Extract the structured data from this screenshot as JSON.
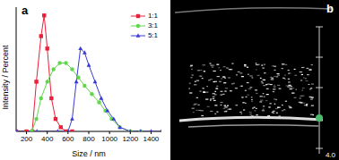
{
  "chart_data": {
    "type": "line",
    "panel_label": "a",
    "x_label": "Size / nm",
    "y_label": "Intensity / Percent",
    "xlim": [
      100,
      1500
    ],
    "xticks": [
      200,
      400,
      600,
      800,
      1000,
      1200,
      1400
    ],
    "ylim": [
      0,
      30
    ],
    "tick_labels": "x",
    "legend": "upper right",
    "series": [
      {
        "name": "1:1",
        "color": "#e8203a",
        "marker": "square",
        "x": [
          100,
          200,
          255,
          295,
          340,
          370,
          400,
          440,
          480,
          530,
          580,
          640
        ],
        "values": [
          0,
          0,
          0,
          12,
          23,
          28,
          20,
          8,
          3,
          1,
          0,
          0
        ]
      },
      {
        "name": "3:1",
        "color": "#5ed84a",
        "marker": "circle",
        "x": [
          250,
          295,
          340,
          400,
          460,
          520,
          580,
          640,
          700,
          760,
          830,
          900,
          960,
          1020,
          1100,
          1200,
          1300
        ],
        "values": [
          0,
          3,
          8,
          12,
          15,
          16.5,
          16.5,
          15,
          13,
          11,
          9,
          7,
          5,
          3,
          1,
          0,
          0
        ]
      },
      {
        "name": "5:1",
        "color": "#3b3bd6",
        "marker": "triangle",
        "x": [
          100,
          300,
          500,
          600,
          640,
          680,
          720,
          760,
          800,
          860,
          920,
          980,
          1040,
          1100,
          1200,
          1300,
          1400,
          1500
        ],
        "values": [
          0,
          0,
          0,
          0,
          3,
          12,
          20,
          19,
          16,
          12,
          8,
          5,
          3,
          1,
          0,
          0,
          0,
          0
        ]
      }
    ]
  },
  "image_panel": {
    "panel_label": "b",
    "scale_label": "4.0"
  }
}
